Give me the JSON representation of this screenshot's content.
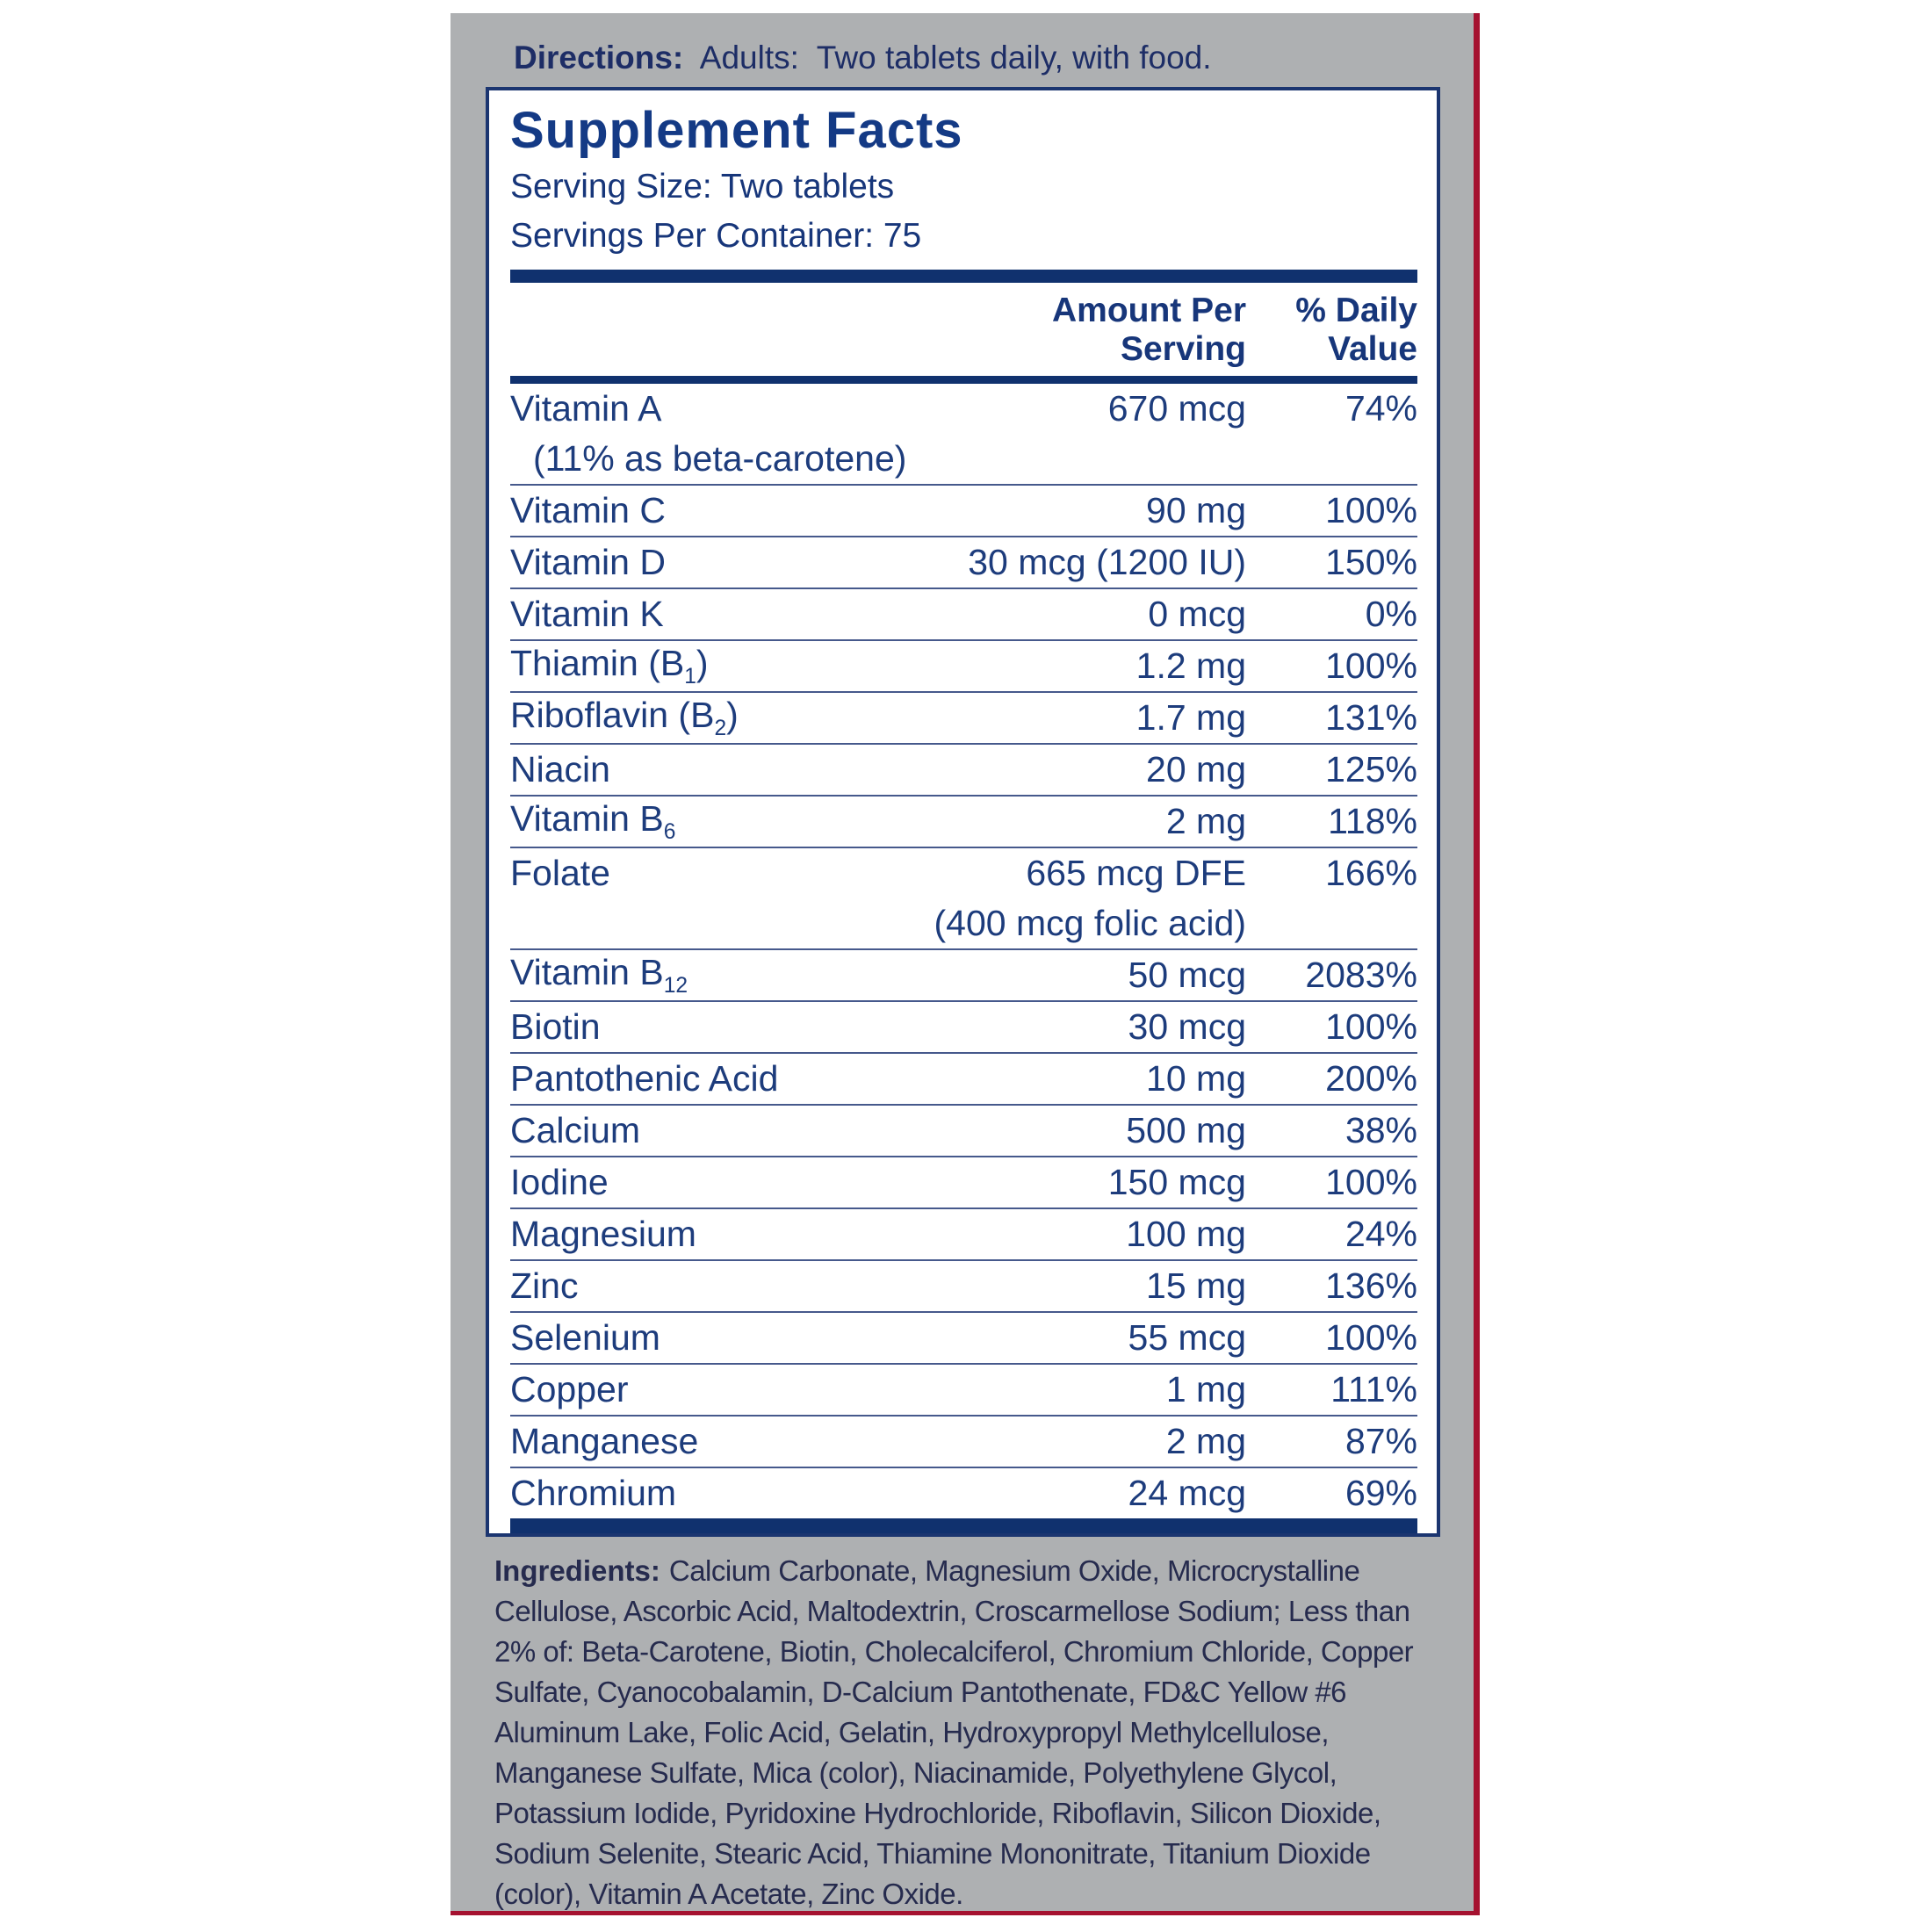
{
  "directions": {
    "label": "Directions:",
    "text": "Adults:  Two tablets daily, with food."
  },
  "supplement_facts": {
    "title": "Supplement Facts",
    "serving_size": "Serving Size: Two tablets",
    "servings_per_container": "Servings Per Container: 75",
    "columns": {
      "amount_line1": "Amount Per",
      "amount_line2": "Serving",
      "dv_line1": "% Daily",
      "dv_line2": "Value"
    },
    "rows": [
      {
        "name": "Vitamin A",
        "amount": "670 mcg",
        "dv": "74%",
        "subline": {
          "text": "(11% as beta-carotene)",
          "align": "left"
        }
      },
      {
        "name": "Vitamin C",
        "amount": "90 mg",
        "dv": "100%"
      },
      {
        "name": "Vitamin D",
        "amount": "30 mcg (1200 IU)",
        "dv": "150%"
      },
      {
        "name": "Vitamin K",
        "amount": "0 mcg",
        "dv": "0%"
      },
      {
        "name": "Thiamin (B",
        "sub": "1",
        "name_post": ")",
        "amount": "1.2 mg",
        "dv": "100%"
      },
      {
        "name": "Riboflavin (B",
        "sub": "2",
        "name_post": ")",
        "amount": "1.7 mg",
        "dv": "131%"
      },
      {
        "name": "Niacin",
        "amount": "20 mg",
        "dv": "125%"
      },
      {
        "name": "Vitamin B",
        "sub": "6",
        "name_post": "",
        "amount": "2 mg",
        "dv": "118%"
      },
      {
        "name": "Folate",
        "amount": "665 mcg DFE",
        "dv": "166%",
        "subline": {
          "text": "(400 mcg folic acid)",
          "align": "amount"
        }
      },
      {
        "name": "Vitamin B",
        "sub": "12",
        "name_post": "",
        "amount": "50 mcg",
        "dv": "2083%"
      },
      {
        "name": "Biotin",
        "amount": "30 mcg",
        "dv": "100%"
      },
      {
        "name": "Pantothenic Acid",
        "amount": "10 mg",
        "dv": "200%"
      },
      {
        "name": "Calcium",
        "amount": "500 mg",
        "dv": "38%"
      },
      {
        "name": "Iodine",
        "amount": "150 mcg",
        "dv": "100%"
      },
      {
        "name": "Magnesium",
        "amount": "100 mg",
        "dv": "24%"
      },
      {
        "name": "Zinc",
        "amount": "15 mg",
        "dv": "136%"
      },
      {
        "name": "Selenium",
        "amount": "55 mcg",
        "dv": "100%"
      },
      {
        "name": "Copper",
        "amount": "1 mg",
        "dv": "111%"
      },
      {
        "name": "Manganese",
        "amount": "2 mg",
        "dv": "87%"
      },
      {
        "name": "Chromium",
        "amount": "24 mcg",
        "dv": "69%"
      }
    ]
  },
  "ingredients": {
    "label": "Ingredients:",
    "text": "Calcium Carbonate, Magnesium Oxide, Microcrystalline Cellulose, Ascorbic Acid, Maltodextrin, Croscarmellose Sodium; Less than 2% of: Beta-Carotene, Biotin, Cholecalciferol, Chromium Chloride, Copper Sulfate, Cyanocobalamin, D-Calcium Pantothenate, FD&C Yellow #6 Aluminum Lake, Folic Acid, Gelatin, Hydroxypropyl Methylcellulose, Manganese Sulfate, Mica (color), Niacinamide, Polyethylene Glycol, Potassium Iodide, Pyridoxine Hydrochloride, Riboflavin, Silicon Dioxide, Sodium Selenite, Stearic Acid, Thiamine Mononitrate, Titanium Dioxide (color), Vitamin A Acetate, Zinc Oxide."
  },
  "colors": {
    "navy_text": "#1d3c7c",
    "navy_bar": "#10316e",
    "label_gray": "#aeb0b2",
    "edge_maroon": "#a51230",
    "panel_white": "#ffffff"
  }
}
